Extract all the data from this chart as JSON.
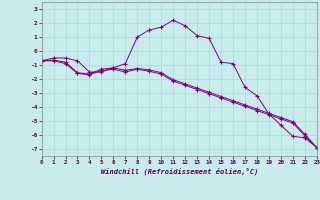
{
  "xlabel": "Windchill (Refroidissement éolien,°C)",
  "background_color": "#c8ecec",
  "line_color": "#800080",
  "x_hours": [
    0,
    1,
    2,
    3,
    4,
    5,
    6,
    7,
    8,
    9,
    10,
    11,
    12,
    13,
    14,
    15,
    16,
    17,
    18,
    19,
    20,
    21,
    22,
    23
  ],
  "series1": [
    -0.7,
    -0.5,
    -0.5,
    -0.7,
    -1.5,
    -1.5,
    -1.2,
    -0.9,
    1.0,
    1.5,
    1.7,
    2.2,
    1.8,
    1.1,
    0.9,
    -0.8,
    -0.9,
    -2.6,
    -3.2,
    -4.5,
    -5.3,
    -6.1,
    -6.2,
    -6.9
  ],
  "series2": [
    -0.7,
    -0.65,
    -0.8,
    -1.55,
    -1.65,
    -1.3,
    -1.2,
    -1.38,
    -1.25,
    -1.35,
    -1.55,
    -2.05,
    -2.35,
    -2.65,
    -2.95,
    -3.25,
    -3.55,
    -3.85,
    -4.15,
    -4.45,
    -4.75,
    -5.05,
    -5.95,
    -6.9
  ],
  "series3": [
    -0.7,
    -0.7,
    -0.9,
    -1.6,
    -1.7,
    -1.4,
    -1.3,
    -1.5,
    -1.3,
    -1.45,
    -1.65,
    -2.15,
    -2.45,
    -2.75,
    -3.05,
    -3.35,
    -3.65,
    -3.95,
    -4.25,
    -4.55,
    -4.85,
    -5.15,
    -6.05,
    -6.9
  ],
  "xlim": [
    0,
    23
  ],
  "ylim": [
    -7.5,
    3.5
  ],
  "yticks": [
    -7,
    -6,
    -5,
    -4,
    -3,
    -2,
    -1,
    0,
    1,
    2,
    3
  ],
  "xticks": [
    0,
    1,
    2,
    3,
    4,
    5,
    6,
    7,
    8,
    9,
    10,
    11,
    12,
    13,
    14,
    15,
    16,
    17,
    18,
    19,
    20,
    21,
    22,
    23
  ],
  "grid_color": "#a8d8d8",
  "marker": "+"
}
